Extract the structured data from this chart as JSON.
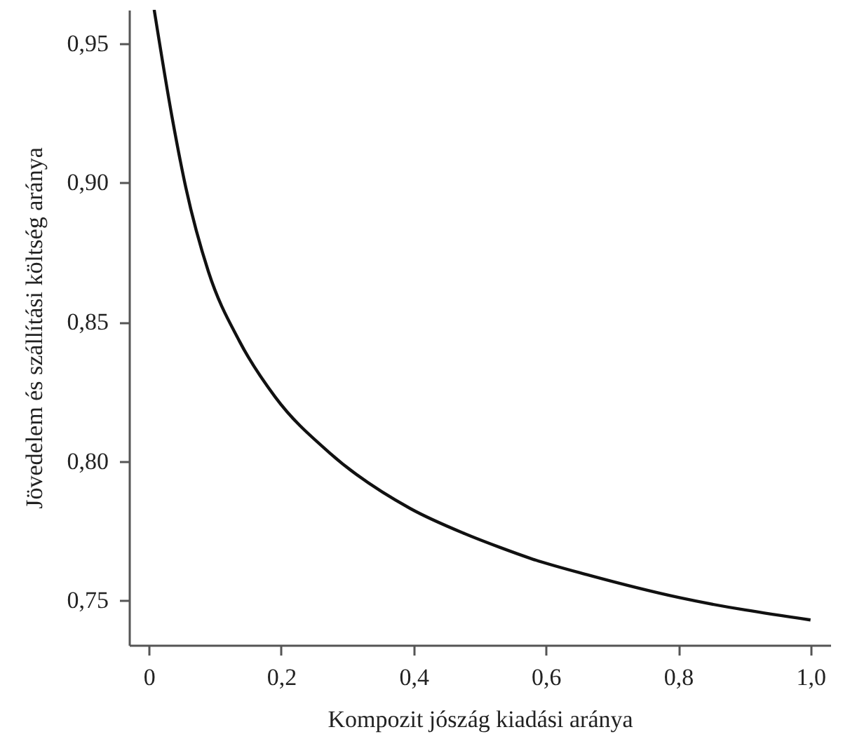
{
  "chart_data": {
    "type": "line",
    "xlabel": "Kompozit jószág kiadási aránya",
    "ylabel": "Jövedelem és szállítási költség aránya",
    "x": [
      0.008,
      0.035,
      0.056,
      0.09,
      0.137,
      0.191,
      0.273,
      0.395,
      0.477,
      0.531,
      0.578,
      0.666,
      0.802,
      1.0
    ],
    "series": [
      {
        "color": "#111111",
        "values": [
          0.962,
          0.9235,
          0.898,
          0.868,
          0.843,
          0.823,
          0.803,
          0.783,
          0.774,
          0.769,
          0.765,
          0.759,
          0.751,
          0.743
        ]
      }
    ],
    "xlim": [
      -0.03,
      1.03
    ],
    "ylim": [
      0.734,
      0.962
    ],
    "xticks": [
      0,
      {
        "value": 0.2,
        "label": "0,2"
      },
      {
        "value": 0.4,
        "label": "0,4"
      },
      {
        "value": 0.6,
        "label": "0,6"
      },
      {
        "value": 0.8,
        "label": "0,8"
      },
      {
        "value": 1.0,
        "label": "1,0"
      }
    ],
    "yticks": [
      {
        "value": 0.75,
        "label": "0,75"
      },
      {
        "value": 0.8,
        "label": "0,80"
      },
      {
        "value": 0.85,
        "label": "0,85"
      },
      {
        "value": 0.9,
        "label": "0,90"
      },
      {
        "value": 0.95,
        "label": "0,95"
      }
    ],
    "grid": false,
    "marker": "none",
    "line_style": "solid"
  }
}
